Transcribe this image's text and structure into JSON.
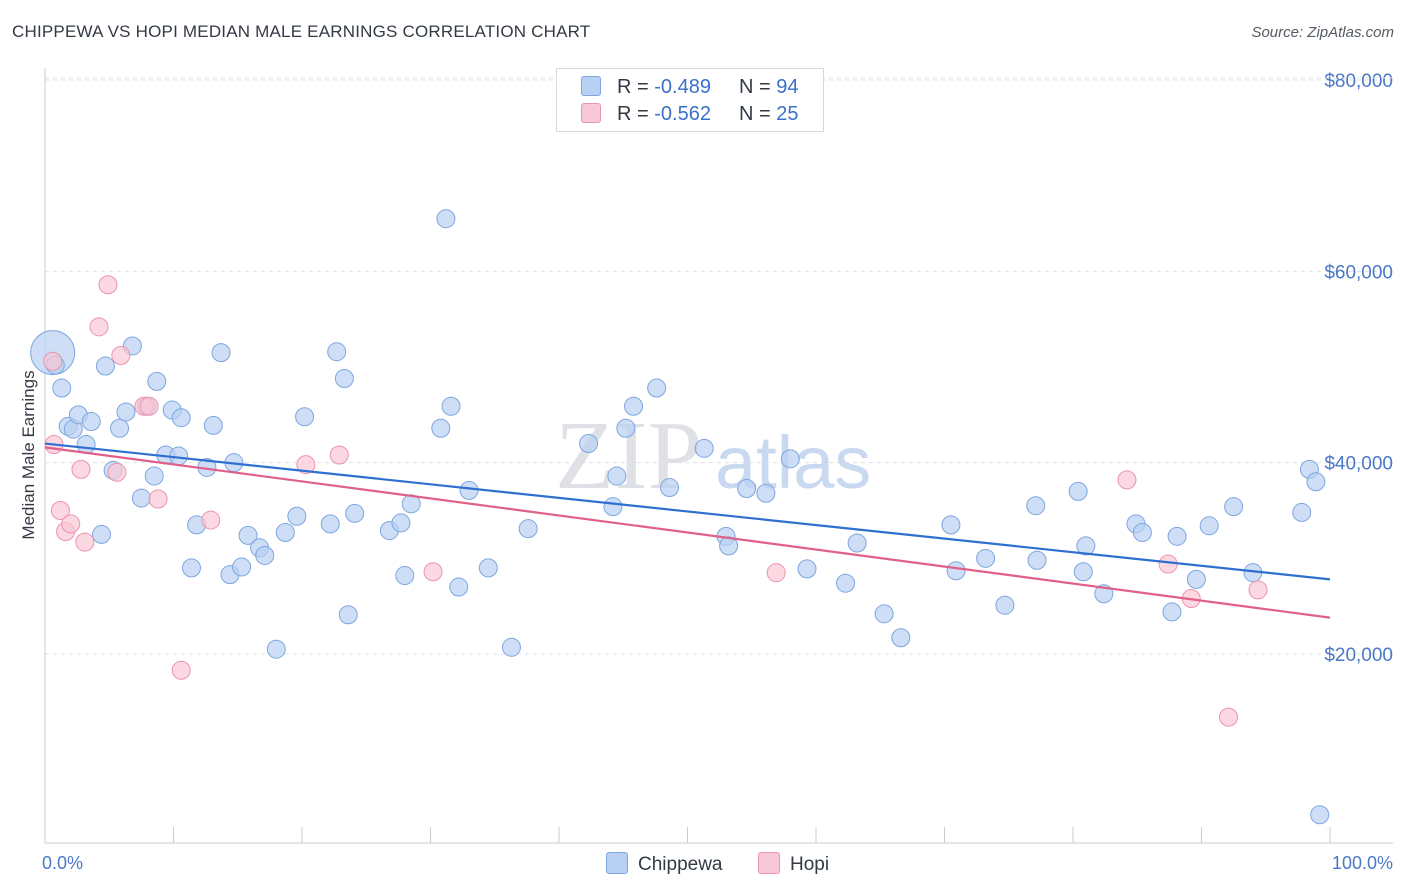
{
  "title": "CHIPPEWA VS HOPI MEDIAN MALE EARNINGS CORRELATION CHART",
  "source": "Source: ZipAtlas.com",
  "watermark": {
    "zip": "ZIP",
    "atlas": "atlas"
  },
  "legend": {
    "rows": [
      {
        "r_label": "R = ",
        "r_value": "-0.489",
        "n_label": "N = ",
        "n_value": "94"
      },
      {
        "r_label": "R = ",
        "r_value": "-0.562",
        "n_label": "N = ",
        "n_value": "25"
      }
    ]
  },
  "bottom_legend": {
    "chippewa": "Chippewa",
    "hopi": "Hopi"
  },
  "colors": {
    "chippewa_fill": "#b8d0f2",
    "chippewa_stroke": "#7ea6e0",
    "chippewa_line": "#2e6fd0",
    "hopi_fill": "#f9c8d6",
    "hopi_stroke": "#ec93ae",
    "hopi_line": "#e0608a",
    "tick_text": "#4a78c8",
    "grid": "#dde0e5"
  },
  "chart_data": {
    "type": "scatter",
    "title": "CHIPPEWA VS HOPI MEDIAN MALE EARNINGS CORRELATION CHART",
    "xlabel": "",
    "ylabel": "Median Male Earnings",
    "xlim": [
      0,
      100
    ],
    "ylim": [
      0,
      83000
    ],
    "x_tick_labels": [
      "0.0%",
      "100.0%"
    ],
    "y_ticks": [
      20000,
      40000,
      60000,
      80000
    ],
    "y_tick_labels": [
      "$20,000",
      "$40,000",
      "$60,000",
      "$80,000"
    ],
    "grid": true,
    "legend_position": "top-center",
    "series": [
      {
        "name": "Chippewa",
        "r": -0.489,
        "n": 94,
        "trend": {
          "x": [
            0,
            100
          ],
          "y": [
            42000,
            27800
          ]
        },
        "points": [
          {
            "x": 0.6,
            "y": 51500,
            "big": true
          },
          {
            "x": 0.8,
            "y": 50200
          },
          {
            "x": 1.3,
            "y": 47800
          },
          {
            "x": 1.8,
            "y": 43800
          },
          {
            "x": 2.2,
            "y": 43500
          },
          {
            "x": 2.6,
            "y": 45000
          },
          {
            "x": 3.2,
            "y": 41900
          },
          {
            "x": 3.6,
            "y": 44300
          },
          {
            "x": 4.4,
            "y": 32500
          },
          {
            "x": 4.7,
            "y": 50100
          },
          {
            "x": 5.3,
            "y": 39200
          },
          {
            "x": 5.8,
            "y": 43600
          },
          {
            "x": 6.3,
            "y": 45300
          },
          {
            "x": 6.8,
            "y": 52200
          },
          {
            "x": 7.5,
            "y": 36300
          },
          {
            "x": 7.9,
            "y": 45900
          },
          {
            "x": 8.5,
            "y": 38600
          },
          {
            "x": 8.7,
            "y": 48500
          },
          {
            "x": 9.4,
            "y": 40800
          },
          {
            "x": 9.9,
            "y": 45500
          },
          {
            "x": 10.4,
            "y": 40700
          },
          {
            "x": 10.6,
            "y": 44700
          },
          {
            "x": 11.4,
            "y": 29000
          },
          {
            "x": 11.8,
            "y": 33500
          },
          {
            "x": 12.6,
            "y": 39500
          },
          {
            "x": 13.1,
            "y": 43900
          },
          {
            "x": 13.7,
            "y": 51500
          },
          {
            "x": 14.4,
            "y": 28300
          },
          {
            "x": 14.7,
            "y": 40000
          },
          {
            "x": 15.3,
            "y": 29100
          },
          {
            "x": 15.8,
            "y": 32400
          },
          {
            "x": 16.7,
            "y": 31100
          },
          {
            "x": 17.1,
            "y": 30300
          },
          {
            "x": 18.0,
            "y": 20500
          },
          {
            "x": 18.7,
            "y": 32700
          },
          {
            "x": 19.6,
            "y": 34400
          },
          {
            "x": 20.2,
            "y": 44800
          },
          {
            "x": 22.2,
            "y": 33600
          },
          {
            "x": 22.7,
            "y": 51600
          },
          {
            "x": 23.3,
            "y": 48800
          },
          {
            "x": 23.6,
            "y": 24100
          },
          {
            "x": 24.1,
            "y": 34700
          },
          {
            "x": 26.8,
            "y": 32900
          },
          {
            "x": 27.7,
            "y": 33700
          },
          {
            "x": 28.0,
            "y": 28200
          },
          {
            "x": 28.5,
            "y": 35700
          },
          {
            "x": 30.8,
            "y": 43600
          },
          {
            "x": 31.2,
            "y": 65500
          },
          {
            "x": 31.6,
            "y": 45900
          },
          {
            "x": 32.2,
            "y": 27000
          },
          {
            "x": 33.0,
            "y": 37100
          },
          {
            "x": 34.5,
            "y": 29000
          },
          {
            "x": 36.3,
            "y": 20700
          },
          {
            "x": 37.6,
            "y": 33100
          },
          {
            "x": 42.3,
            "y": 42000
          },
          {
            "x": 44.2,
            "y": 35400
          },
          {
            "x": 44.5,
            "y": 38600
          },
          {
            "x": 45.2,
            "y": 43600
          },
          {
            "x": 45.8,
            "y": 45900
          },
          {
            "x": 47.6,
            "y": 47800
          },
          {
            "x": 48.6,
            "y": 37400
          },
          {
            "x": 51.3,
            "y": 41500
          },
          {
            "x": 53.0,
            "y": 32300
          },
          {
            "x": 53.2,
            "y": 31300
          },
          {
            "x": 54.6,
            "y": 37300
          },
          {
            "x": 56.1,
            "y": 36800
          },
          {
            "x": 58.0,
            "y": 40400
          },
          {
            "x": 59.3,
            "y": 28900
          },
          {
            "x": 62.3,
            "y": 27400
          },
          {
            "x": 63.2,
            "y": 31600
          },
          {
            "x": 65.3,
            "y": 24200
          },
          {
            "x": 66.6,
            "y": 21700
          },
          {
            "x": 70.5,
            "y": 33500
          },
          {
            "x": 70.9,
            "y": 28700
          },
          {
            "x": 73.2,
            "y": 30000
          },
          {
            "x": 74.7,
            "y": 25100
          },
          {
            "x": 77.1,
            "y": 35500
          },
          {
            "x": 77.2,
            "y": 29800
          },
          {
            "x": 80.4,
            "y": 37000
          },
          {
            "x": 80.8,
            "y": 28600
          },
          {
            "x": 81.0,
            "y": 31300
          },
          {
            "x": 82.4,
            "y": 26300
          },
          {
            "x": 84.9,
            "y": 33600
          },
          {
            "x": 85.4,
            "y": 32700
          },
          {
            "x": 87.7,
            "y": 24400
          },
          {
            "x": 88.1,
            "y": 32300
          },
          {
            "x": 89.6,
            "y": 27800
          },
          {
            "x": 90.6,
            "y": 33400
          },
          {
            "x": 92.5,
            "y": 35400
          },
          {
            "x": 94.0,
            "y": 28500
          },
          {
            "x": 97.8,
            "y": 34800
          },
          {
            "x": 98.4,
            "y": 39300
          },
          {
            "x": 98.9,
            "y": 38000
          },
          {
            "x": 99.2,
            "y": 3200
          }
        ]
      },
      {
        "name": "Hopi",
        "r": -0.562,
        "n": 25,
        "trend": {
          "x": [
            0,
            100
          ],
          "y": [
            41600,
            23800
          ]
        },
        "points": [
          {
            "x": 0.6,
            "y": 50600
          },
          {
            "x": 0.7,
            "y": 41900
          },
          {
            "x": 1.2,
            "y": 35000
          },
          {
            "x": 1.6,
            "y": 32800
          },
          {
            "x": 2.0,
            "y": 33600
          },
          {
            "x": 2.8,
            "y": 39300
          },
          {
            "x": 3.1,
            "y": 31700
          },
          {
            "x": 4.2,
            "y": 54200
          },
          {
            "x": 4.9,
            "y": 58600
          },
          {
            "x": 5.6,
            "y": 39000
          },
          {
            "x": 5.9,
            "y": 51200
          },
          {
            "x": 7.7,
            "y": 45900
          },
          {
            "x": 8.1,
            "y": 45900
          },
          {
            "x": 8.8,
            "y": 36200
          },
          {
            "x": 10.6,
            "y": 18300
          },
          {
            "x": 12.9,
            "y": 34000
          },
          {
            "x": 20.3,
            "y": 39800
          },
          {
            "x": 22.9,
            "y": 40800
          },
          {
            "x": 30.2,
            "y": 28600
          },
          {
            "x": 56.9,
            "y": 28500
          },
          {
            "x": 84.2,
            "y": 38200
          },
          {
            "x": 87.4,
            "y": 29400
          },
          {
            "x": 89.2,
            "y": 25800
          },
          {
            "x": 92.1,
            "y": 13400
          },
          {
            "x": 94.4,
            "y": 26700
          }
        ]
      }
    ]
  }
}
